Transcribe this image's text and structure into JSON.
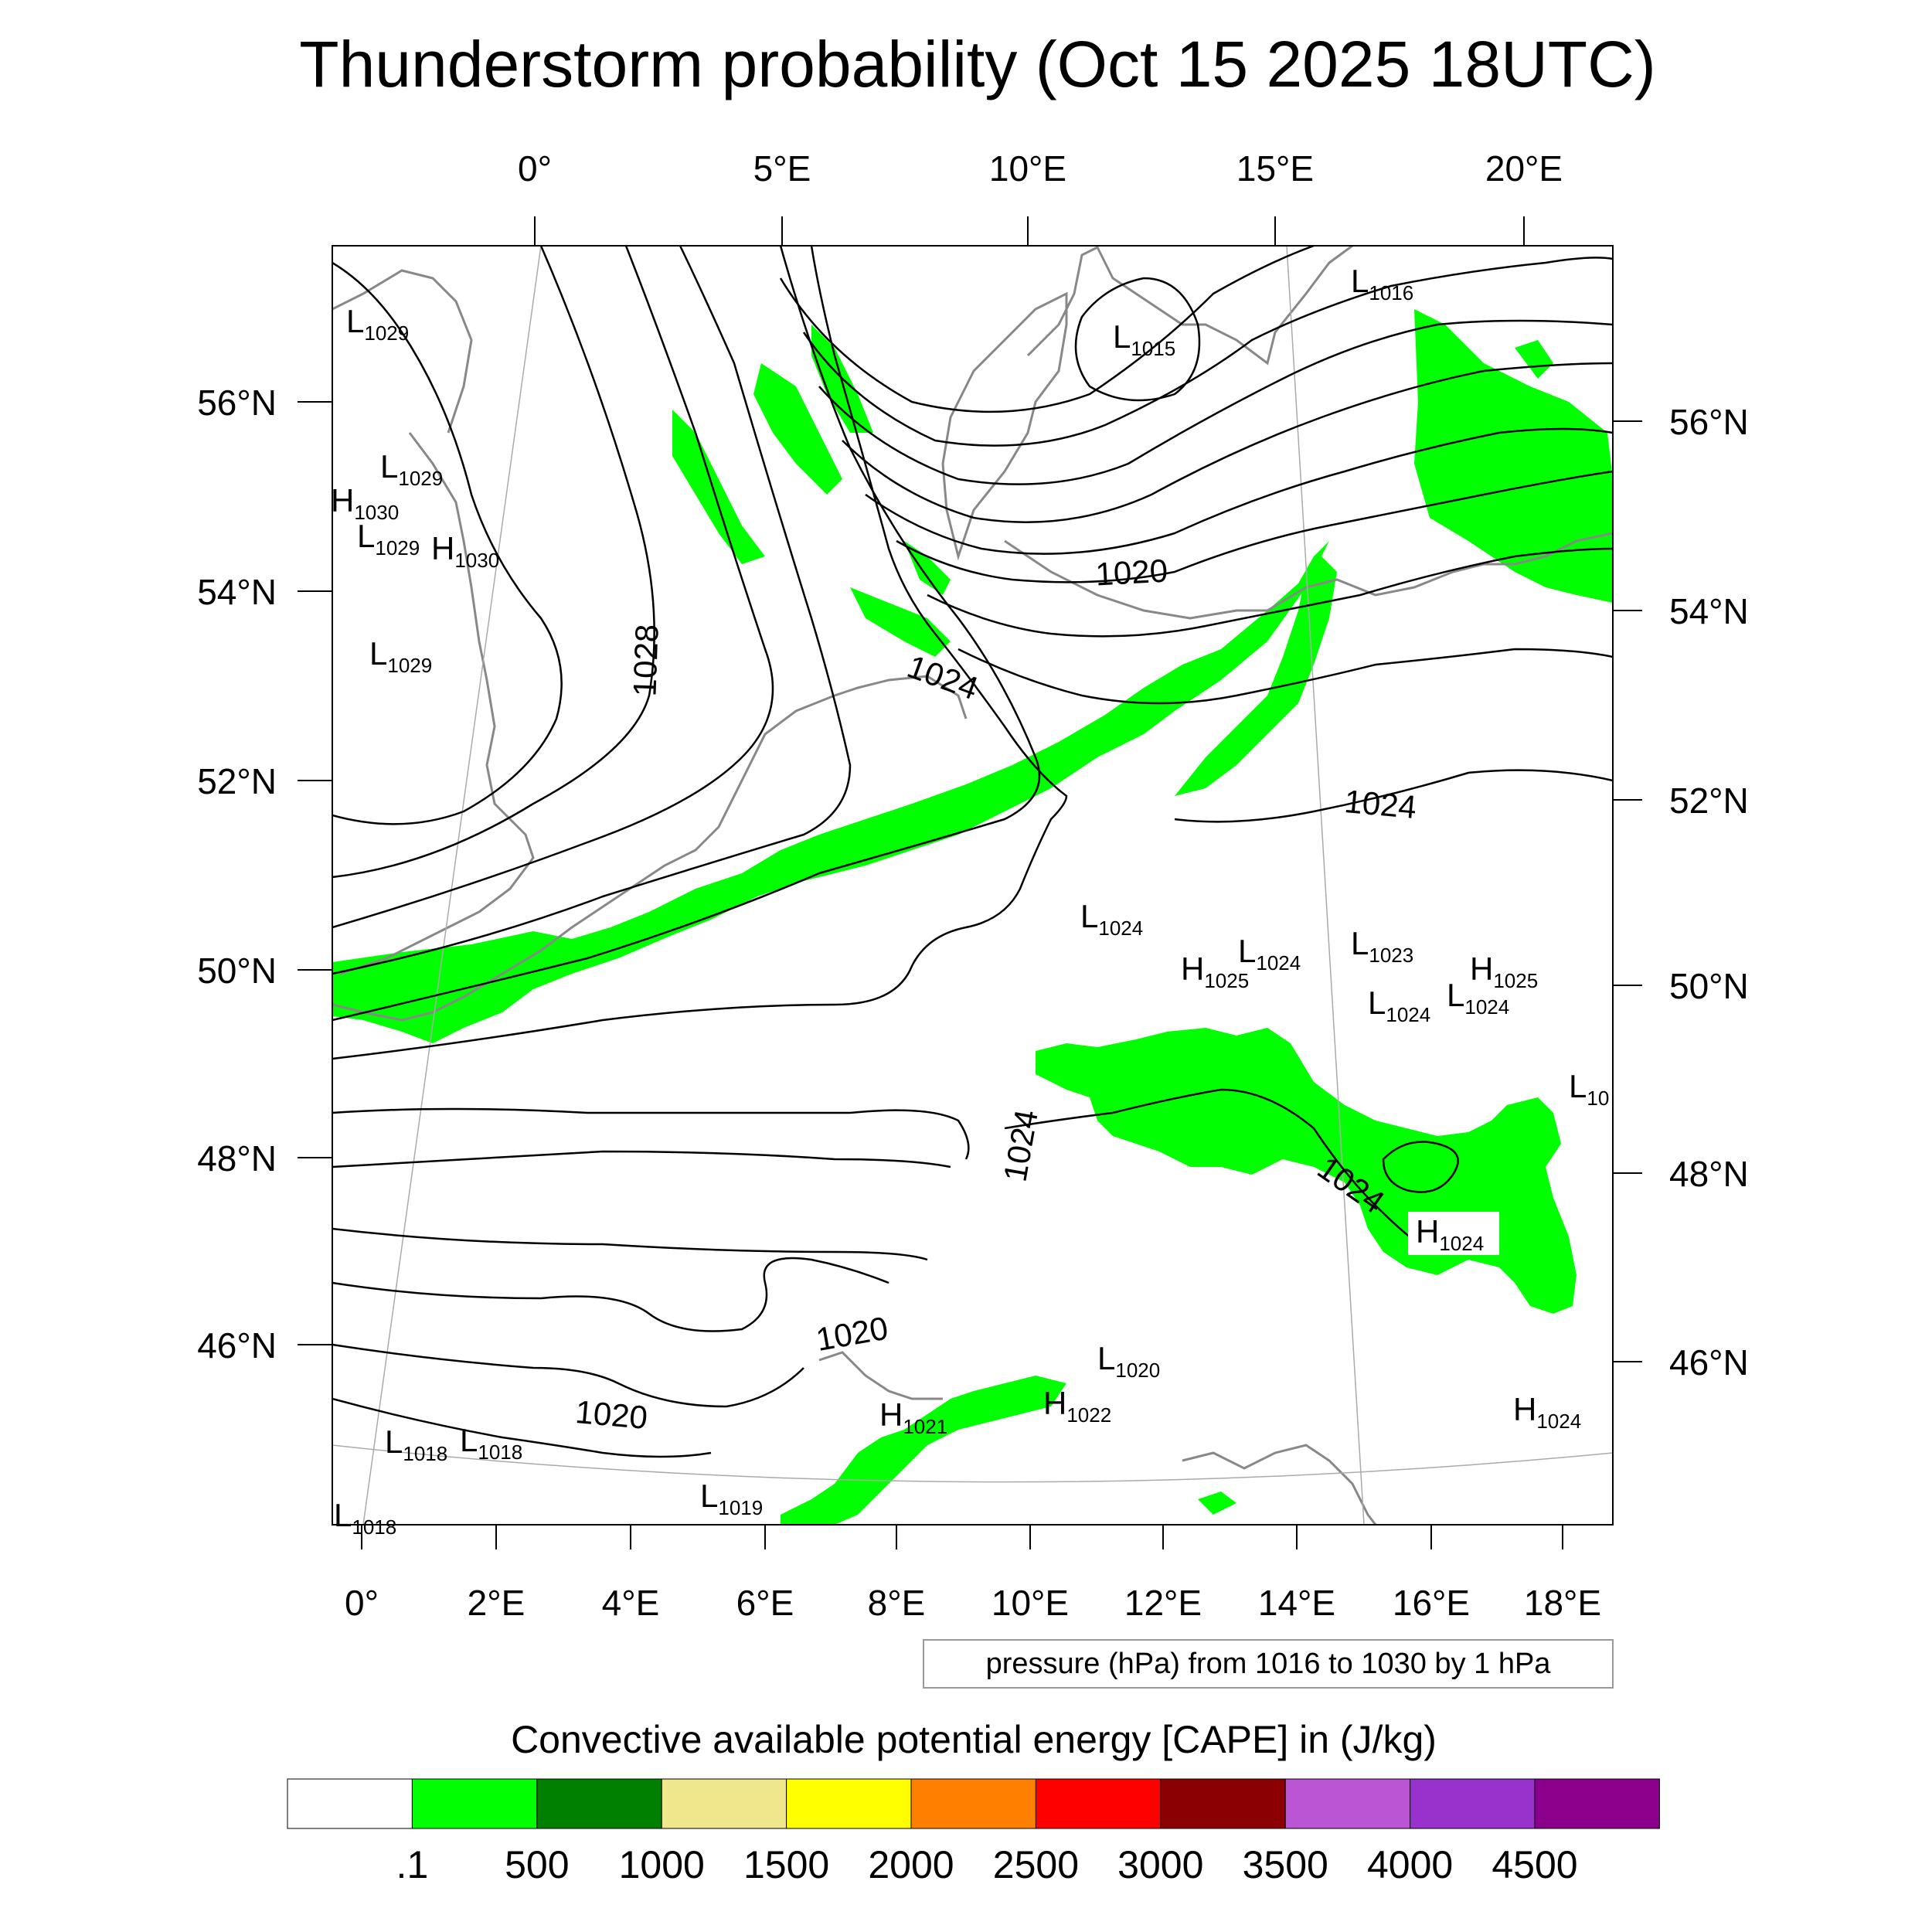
{
  "title": "Thunderstorm probability (Oct 15 2025 18UTC)",
  "legend_note": "pressure (hPa) from 1016 to 1030 by 1 hPa",
  "colorbar_title": "Convective available potential energy [CAPE] in (J/kg)",
  "colors": {
    "cape_fill": "#00ff00",
    "isobar": "#000000",
    "coastline": "#888888",
    "grid": "#aaaaaa"
  },
  "top_axis_labels": [
    "0°",
    "5°E",
    "10°E",
    "15°E",
    "20°E"
  ],
  "bottom_axis_labels": [
    "0°",
    "2°E",
    "4°E",
    "6°E",
    "8°E",
    "10°E",
    "12°E",
    "14°E",
    "16°E",
    "18°E"
  ],
  "left_axis_labels": [
    "56°N",
    "54°N",
    "52°N",
    "50°N",
    "48°N",
    "46°N"
  ],
  "right_axis_labels": [
    "56°N",
    "54°N",
    "52°N",
    "50°N",
    "48°N",
    "46°N"
  ],
  "colorbar": {
    "colors": [
      "#ffffff",
      "#00ff00",
      "#008000",
      "#f0e68c",
      "#ffff00",
      "#ff8000",
      "#ff0000",
      "#8b0000",
      "#ba55d3",
      "#9932cc",
      "#8b008b"
    ],
    "labels": [
      ".1",
      "500",
      "1000",
      "1500",
      "2000",
      "2500",
      "3000",
      "3500",
      "4000",
      "4500"
    ]
  },
  "isobar_labels": [
    "1028",
    "1024",
    "1020",
    "1024",
    "1024",
    "1024",
    "1020",
    "1020"
  ],
  "pressure_centers": [
    {
      "type": "L",
      "value": "1029"
    },
    {
      "type": "L",
      "value": "1029"
    },
    {
      "type": "H",
      "value": "1030"
    },
    {
      "type": "L",
      "value": "1029"
    },
    {
      "type": "H",
      "value": "1030"
    },
    {
      "type": "L",
      "value": "1029"
    },
    {
      "type": "L",
      "value": "1015"
    },
    {
      "type": "L",
      "value": "1016"
    },
    {
      "type": "L",
      "value": "1024"
    },
    {
      "type": "H",
      "value": "1025"
    },
    {
      "type": "L",
      "value": "1024"
    },
    {
      "type": "L",
      "value": "1023"
    },
    {
      "type": "L",
      "value": "1024"
    },
    {
      "type": "L",
      "value": "1024"
    },
    {
      "type": "H",
      "value": "1025"
    },
    {
      "type": "L",
      "value": "10"
    },
    {
      "type": "H",
      "value": "1024"
    },
    {
      "type": "H",
      "value": "1024"
    },
    {
      "type": "L",
      "value": "1020"
    },
    {
      "type": "H",
      "value": "1022"
    },
    {
      "type": "H",
      "value": "1021"
    },
    {
      "type": "L",
      "value": "1018"
    },
    {
      "type": "L",
      "value": "1018"
    },
    {
      "type": "L",
      "value": "1019"
    },
    {
      "type": "L",
      "value": "1018"
    }
  ]
}
